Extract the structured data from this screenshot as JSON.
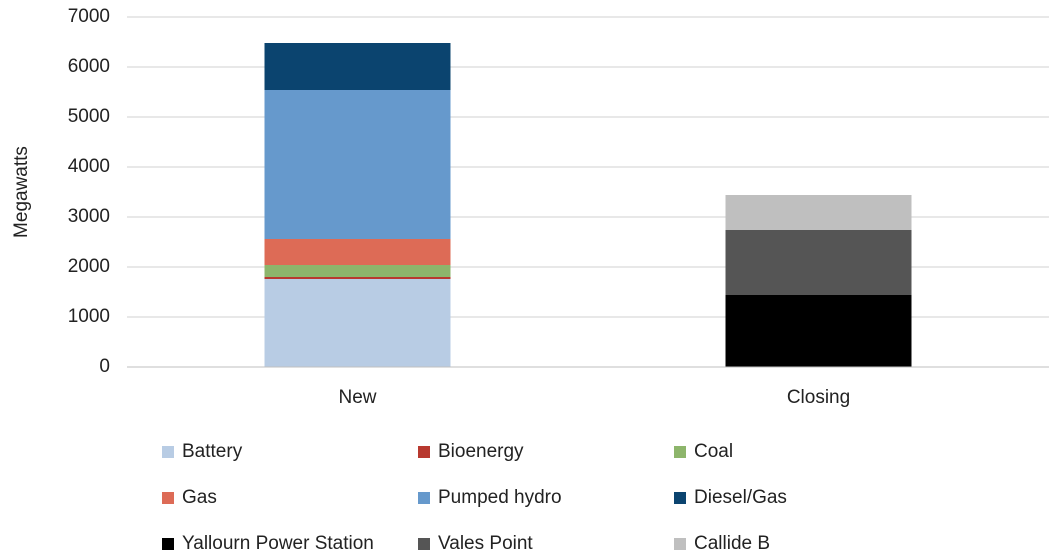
{
  "chart_data": {
    "type": "stacked_bar",
    "y_label": "Megawatts",
    "categories": [
      "New",
      "Closing"
    ],
    "series": [
      {
        "name": "Battery",
        "color": "#b8cce4",
        "values": [
          1760,
          null
        ]
      },
      {
        "name": "Bioenergy",
        "color": "#b8392f",
        "values": [
          40,
          null
        ]
      },
      {
        "name": "Coal",
        "color": "#8db56b",
        "values": [
          240,
          null
        ]
      },
      {
        "name": "Gas",
        "color": "#dd6b56",
        "values": [
          520,
          null
        ]
      },
      {
        "name": "Pumped hydro",
        "color": "#6699cc",
        "values": [
          2980,
          null
        ]
      },
      {
        "name": "Diesel/Gas",
        "color": "#0b446f",
        "values": [
          940,
          null
        ]
      },
      {
        "name": "Yallourn Power Station",
        "color": "#000000",
        "values": [
          null,
          1440
        ]
      },
      {
        "name": "Vales Point",
        "color": "#555555",
        "values": [
          null,
          1300
        ]
      },
      {
        "name": "Callide B",
        "color": "#bfbfbf",
        "values": [
          null,
          700
        ]
      }
    ],
    "ylim": [
      0,
      7000
    ],
    "yticks": [
      0,
      1000,
      2000,
      3000,
      4000,
      5000,
      6000,
      7000
    ],
    "grid": true
  }
}
